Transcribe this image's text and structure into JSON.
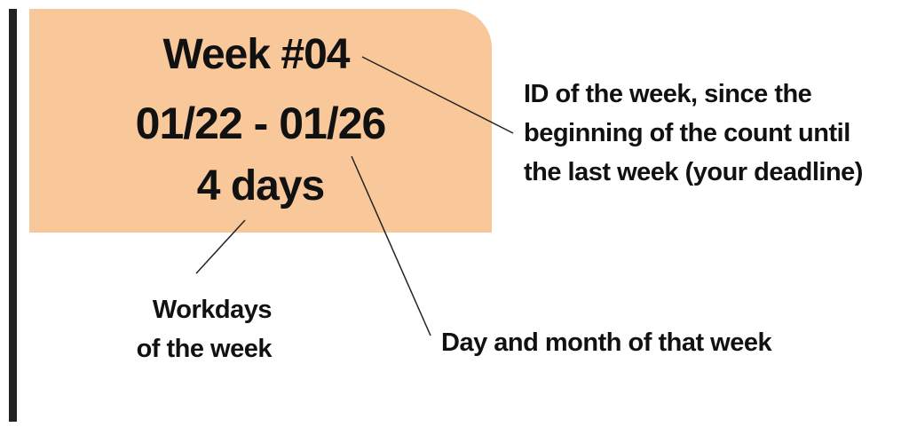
{
  "card": {
    "week_id": "Week #04",
    "date_range": "01/22 - 01/26",
    "workdays": "4 days",
    "color": "#f8c89a"
  },
  "annotations": {
    "week_id_note": [
      "ID of the week, since the",
      "beginning of the count until",
      "the last week (your deadline)"
    ],
    "workdays_note": [
      "Workdays",
      "of the week"
    ],
    "date_note": "Day and month of that week"
  }
}
